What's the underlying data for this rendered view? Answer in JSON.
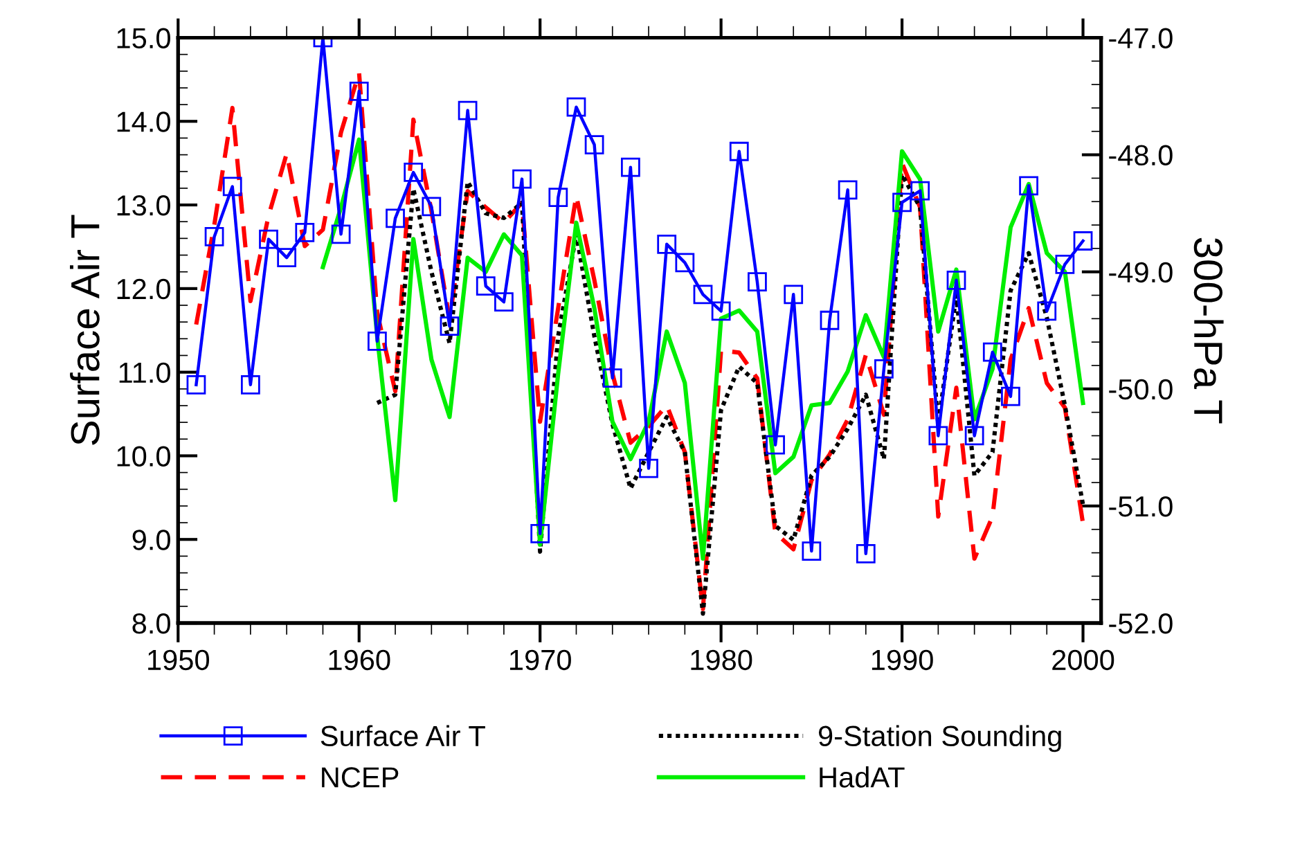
{
  "chart_data": {
    "type": "line",
    "xlabel": null,
    "ylabel": "Surface Air T",
    "y2label": "300-hPa T",
    "x": [
      1951,
      1952,
      1953,
      1954,
      1955,
      1956,
      1957,
      1958,
      1959,
      1960,
      1961,
      1962,
      1963,
      1964,
      1965,
      1966,
      1967,
      1968,
      1969,
      1970,
      1971,
      1972,
      1973,
      1974,
      1975,
      1976,
      1977,
      1978,
      1979,
      1980,
      1981,
      1982,
      1983,
      1984,
      1985,
      1986,
      1987,
      1988,
      1989,
      1990,
      1991,
      1992,
      1993,
      1994,
      1995,
      1996,
      1997,
      1998,
      1999,
      2000
    ],
    "xlim": [
      1950,
      2001
    ],
    "xticks": [
      1950,
      1960,
      1970,
      1980,
      1990,
      2000
    ],
    "ylim": [
      8,
      15
    ],
    "yticks": [
      {
        "value": 8,
        "label": "8.0"
      },
      {
        "value": 9,
        "label": "9.0"
      },
      {
        "value": 10,
        "label": "10.0"
      },
      {
        "value": 11,
        "label": "11.0"
      },
      {
        "value": 12,
        "label": "12.0"
      },
      {
        "value": 13,
        "label": "13.0"
      },
      {
        "value": 14,
        "label": "14.0"
      },
      {
        "value": 15,
        "label": "15.0"
      }
    ],
    "y2lim": [
      -52,
      -47
    ],
    "y2ticks": [
      {
        "value": -52,
        "label": "-52.0"
      },
      {
        "value": -51,
        "label": "-51.0"
      },
      {
        "value": -50,
        "label": "-50.0"
      },
      {
        "value": -49,
        "label": "-49.0"
      },
      {
        "value": -48,
        "label": "-48.0"
      },
      {
        "value": -47,
        "label": "-47.0"
      }
    ],
    "grid": false,
    "legend": "bottom",
    "series": [
      {
        "name": "Surface Air T",
        "color": "#0000ff",
        "axis": "y",
        "marker": "square",
        "line_style": "solid",
        "values": [
          10.85,
          12.62,
          13.22,
          10.85,
          12.59,
          12.37,
          12.67,
          15.0,
          12.65,
          14.36,
          11.37,
          12.84,
          13.39,
          12.98,
          11.55,
          14.13,
          12.03,
          11.84,
          13.31,
          9.07,
          13.09,
          14.17,
          13.72,
          10.93,
          13.45,
          9.85,
          12.53,
          12.31,
          11.93,
          11.73,
          13.64,
          12.08,
          10.13,
          11.93,
          8.86,
          11.62,
          13.18,
          8.83,
          11.04,
          13.03,
          13.17,
          10.24,
          12.1,
          10.24,
          11.24,
          10.71,
          13.23,
          11.73,
          12.29,
          12.57
        ]
      },
      {
        "name": "NCEP",
        "color": "#ff0000",
        "axis": "y2",
        "marker": "none",
        "line_style": "dashed",
        "values": [
          -49.45,
          -48.6,
          -47.6,
          -49.25,
          -48.52,
          -47.99,
          -48.78,
          -48.64,
          -47.81,
          -47.3,
          -49.35,
          -50.02,
          -47.7,
          -48.48,
          -49.41,
          -48.31,
          -48.45,
          -48.58,
          -48.41,
          -50.28,
          -49.31,
          -48.35,
          -49.07,
          -49.87,
          -50.46,
          -50.32,
          -50.14,
          -50.54,
          -51.88,
          -49.67,
          -49.69,
          -49.91,
          -51.23,
          -51.37,
          -50.78,
          -50.56,
          -50.26,
          -49.71,
          -50.22,
          -48.07,
          -48.45,
          -51.09,
          -49.99,
          -51.45,
          -51.09,
          -49.75,
          -49.31,
          -49.95,
          -50.16,
          -51.15
        ]
      },
      {
        "name": "9-Station Sounding",
        "color": "#000000",
        "axis": "y2",
        "marker": "none",
        "line_style": "dotted",
        "values": [
          null,
          null,
          null,
          null,
          null,
          null,
          null,
          null,
          null,
          null,
          -50.12,
          -50.05,
          -48.29,
          -49.0,
          -49.61,
          -48.23,
          -48.5,
          -48.54,
          -48.41,
          -51.39,
          -49.55,
          -48.68,
          -49.55,
          -50.3,
          -50.85,
          -50.54,
          -50.24,
          -50.54,
          -51.92,
          -50.18,
          -49.81,
          -49.95,
          -51.17,
          -51.29,
          -50.74,
          -50.58,
          -50.34,
          -50.05,
          -50.6,
          -48.17,
          -48.45,
          -50.3,
          -49.2,
          -50.74,
          -50.54,
          -49.16,
          -48.84,
          -49.39,
          -50.14,
          -50.99
        ]
      },
      {
        "name": "HadAT",
        "color": "#00ee00",
        "axis": "y2",
        "marker": "none",
        "line_style": "solid",
        "values": [
          null,
          null,
          null,
          null,
          null,
          null,
          null,
          -48.96,
          -48.45,
          -47.87,
          -49.55,
          -50.95,
          -48.72,
          -49.75,
          -50.24,
          -48.88,
          -49.0,
          -48.68,
          -48.86,
          -51.33,
          -49.87,
          -48.58,
          -49.31,
          -50.28,
          -50.6,
          -50.28,
          -49.51,
          -49.95,
          -51.45,
          -49.4,
          -49.33,
          -49.51,
          -50.72,
          -50.58,
          -50.14,
          -50.12,
          -49.85,
          -49.37,
          -49.73,
          -47.97,
          -48.21,
          -49.51,
          -48.98,
          -50.26,
          -49.83,
          -48.62,
          -48.25,
          -48.84,
          -49.0,
          -50.12
        ]
      }
    ]
  }
}
